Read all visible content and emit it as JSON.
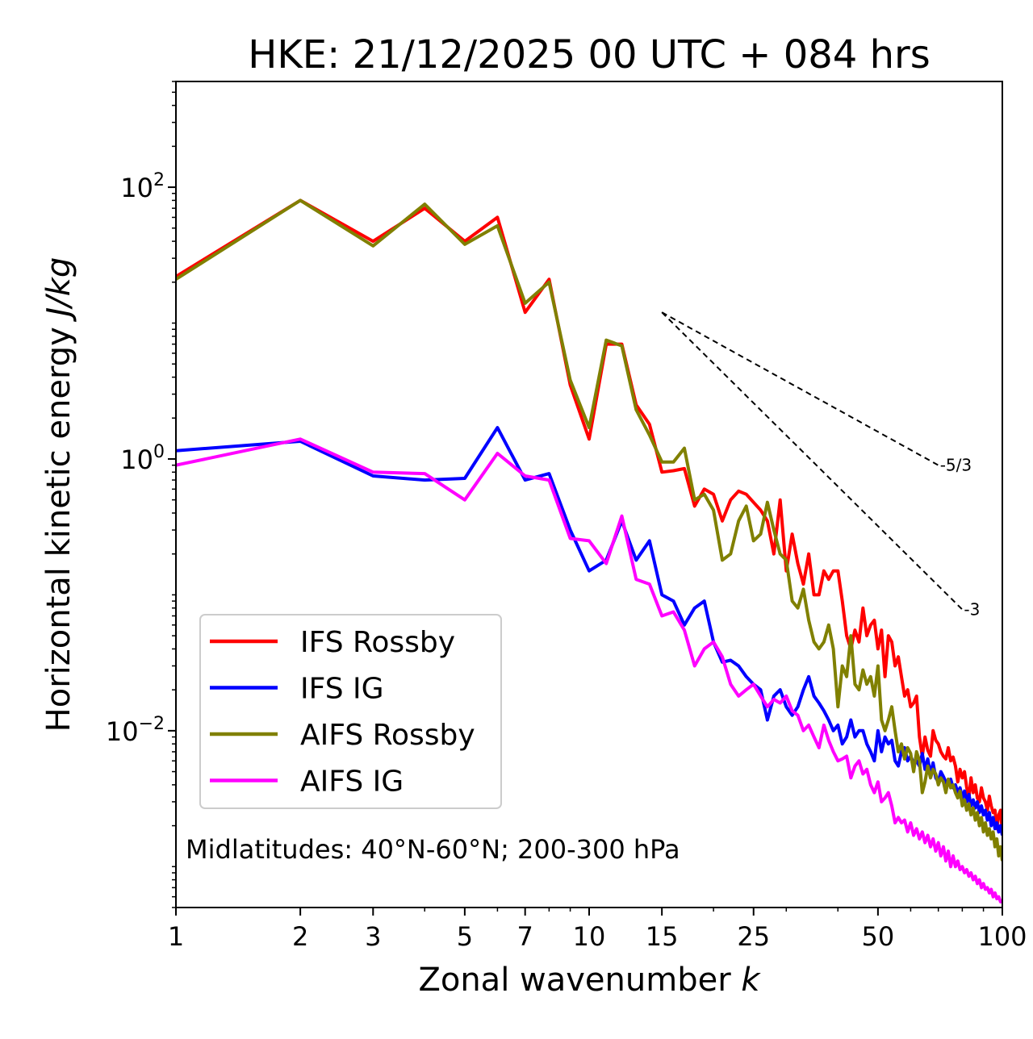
{
  "chart_data": {
    "type": "line",
    "title": "HKE: 21/12/2025 00 UTC + 084 hrs",
    "xlabel_text": "Zonal wavenumber ",
    "xlabel_var": "k",
    "ylabel_text": "Horizontal kinetic energy ",
    "ylabel_var": "J/kg",
    "xscale": "log",
    "yscale": "log",
    "xlim": [
      1,
      100
    ],
    "ylim": [
      0.0005,
      600
    ],
    "x_ticks": [
      1,
      2,
      3,
      5,
      7,
      10,
      15,
      25,
      50,
      100
    ],
    "x_tick_labels": [
      "1",
      "2",
      "3",
      "5",
      "7",
      "10",
      "15",
      "25",
      "50",
      "100"
    ],
    "y_ticks": [
      0.01,
      1,
      100
    ],
    "y_tick_base": "10",
    "y_tick_exponents": [
      "−2",
      "0",
      "2"
    ],
    "annotation": "Midlatitudes: 40°N-60°N; 200-300 hPa",
    "legend_position": "lower-left",
    "reference_lines": [
      {
        "label": "-5/3",
        "slope": -1.6667,
        "x": [
          15,
          70
        ],
        "y": [
          12.0,
          0.9
        ]
      },
      {
        "label": "-3",
        "slope": -3,
        "x": [
          15,
          80
        ],
        "y": [
          12.0,
          0.078
        ]
      }
    ],
    "series": [
      {
        "name": "IFS Rossby",
        "color": "#ff0000",
        "x": [
          1,
          2,
          3,
          4,
          5,
          6,
          7,
          8,
          9,
          10,
          11,
          12,
          13,
          14,
          15,
          16,
          17,
          18,
          19,
          20,
          21,
          22,
          23,
          24,
          25,
          26,
          27,
          28,
          29,
          30,
          31,
          32,
          33,
          34,
          35,
          36,
          37,
          38,
          39,
          40,
          41,
          42,
          43,
          44,
          45,
          46,
          47,
          48,
          49,
          50,
          51,
          52,
          53,
          54,
          55,
          56,
          57,
          58,
          59,
          60,
          61,
          62,
          63,
          64,
          65,
          66,
          67,
          68,
          69,
          70,
          71,
          72,
          73,
          74,
          75,
          76,
          77,
          78,
          79,
          80,
          81,
          82,
          83,
          84,
          85,
          86,
          87,
          88,
          89,
          90,
          91,
          92,
          93,
          94,
          95,
          96,
          97,
          98,
          99,
          100
        ],
        "y": [
          22,
          80,
          40,
          70,
          40,
          60,
          12,
          21,
          3.5,
          1.4,
          7,
          7,
          2.5,
          1.8,
          0.8,
          0.82,
          0.85,
          0.45,
          0.6,
          0.55,
          0.35,
          0.5,
          0.58,
          0.55,
          0.48,
          0.42,
          0.35,
          0.2,
          0.5,
          0.15,
          0.28,
          0.17,
          0.12,
          0.2,
          0.1,
          0.1,
          0.15,
          0.13,
          0.15,
          0.15,
          0.09,
          0.05,
          0.04,
          0.055,
          0.045,
          0.08,
          0.05,
          0.06,
          0.065,
          0.04,
          0.055,
          0.025,
          0.05,
          0.045,
          0.03,
          0.035,
          0.025,
          0.018,
          0.02,
          0.015,
          0.016,
          0.018,
          0.009,
          0.0065,
          0.009,
          0.0072,
          0.0065,
          0.01,
          0.0085,
          0.008,
          0.007,
          0.0065,
          0.0062,
          0.0075,
          0.006,
          0.0064,
          0.0055,
          0.0042,
          0.0052,
          0.0045,
          0.005,
          0.0038,
          0.0032,
          0.0045,
          0.0035,
          0.004,
          0.0032,
          0.003,
          0.0038,
          0.0032,
          0.003,
          0.0026,
          0.0033,
          0.0028,
          0.0025,
          0.0026,
          0.0019,
          0.0024,
          0.0026,
          0.0018
        ]
      },
      {
        "name": "IFS IG",
        "color": "#0000ff",
        "x": [
          1,
          2,
          3,
          4,
          5,
          6,
          7,
          8,
          9,
          10,
          11,
          12,
          13,
          14,
          15,
          16,
          17,
          18,
          19,
          20,
          21,
          22,
          23,
          24,
          25,
          26,
          27,
          28,
          29,
          30,
          31,
          32,
          33,
          34,
          35,
          36,
          37,
          38,
          39,
          40,
          41,
          42,
          43,
          44,
          45,
          46,
          47,
          48,
          49,
          50,
          51,
          52,
          53,
          54,
          55,
          56,
          57,
          58,
          59,
          60,
          61,
          62,
          63,
          64,
          65,
          66,
          67,
          68,
          69,
          70,
          71,
          72,
          73,
          74,
          75,
          76,
          77,
          78,
          79,
          80,
          81,
          82,
          83,
          84,
          85,
          86,
          87,
          88,
          89,
          90,
          91,
          92,
          93,
          94,
          95,
          96,
          97,
          98,
          99,
          100
        ],
        "y": [
          1.15,
          1.35,
          0.75,
          0.7,
          0.72,
          1.7,
          0.7,
          0.78,
          0.3,
          0.15,
          0.18,
          0.35,
          0.18,
          0.25,
          0.1,
          0.09,
          0.06,
          0.08,
          0.09,
          0.045,
          0.032,
          0.033,
          0.03,
          0.025,
          0.022,
          0.02,
          0.012,
          0.018,
          0.02,
          0.015,
          0.013,
          0.015,
          0.02,
          0.025,
          0.018,
          0.016,
          0.014,
          0.012,
          0.01,
          0.011,
          0.008,
          0.009,
          0.012,
          0.009,
          0.01,
          0.01,
          0.008,
          0.007,
          0.006,
          0.01,
          0.007,
          0.009,
          0.008,
          0.0085,
          0.006,
          0.0055,
          0.007,
          0.0075,
          0.006,
          0.0065,
          0.0058,
          0.006,
          0.0055,
          0.0068,
          0.0052,
          0.0062,
          0.0048,
          0.0058,
          0.0045,
          0.0042,
          0.005,
          0.0046,
          0.0042,
          0.004,
          0.0044,
          0.0038,
          0.004,
          0.0035,
          0.0038,
          0.0032,
          0.0036,
          0.003,
          0.0034,
          0.0028,
          0.0031,
          0.0027,
          0.003,
          0.0025,
          0.0028,
          0.0024,
          0.0026,
          0.0022,
          0.0025,
          0.002,
          0.0023,
          0.0019,
          0.0021,
          0.0018,
          0.002,
          0.0017
        ]
      },
      {
        "name": "AIFS Rossby",
        "color": "#808000",
        "x": [
          1,
          2,
          3,
          4,
          5,
          6,
          7,
          8,
          9,
          10,
          11,
          12,
          13,
          14,
          15,
          16,
          17,
          18,
          19,
          20,
          21,
          22,
          23,
          24,
          25,
          26,
          27,
          28,
          29,
          30,
          31,
          32,
          33,
          34,
          35,
          36,
          37,
          38,
          39,
          40,
          41,
          42,
          43,
          44,
          45,
          46,
          47,
          48,
          49,
          50,
          51,
          52,
          53,
          54,
          55,
          56,
          57,
          58,
          59,
          60,
          61,
          62,
          63,
          64,
          65,
          66,
          67,
          68,
          69,
          70,
          71,
          72,
          73,
          74,
          75,
          76,
          77,
          78,
          79,
          80,
          81,
          82,
          83,
          84,
          85,
          86,
          87,
          88,
          89,
          90,
          91,
          92,
          93,
          94,
          95,
          96,
          97,
          98,
          99,
          100
        ],
        "y": [
          21,
          80,
          37,
          75,
          38,
          52,
          14,
          20,
          3.8,
          1.7,
          7.5,
          6.8,
          2.3,
          1.5,
          0.95,
          0.95,
          1.2,
          0.5,
          0.55,
          0.42,
          0.18,
          0.2,
          0.35,
          0.45,
          0.25,
          0.28,
          0.48,
          0.3,
          0.2,
          0.18,
          0.09,
          0.08,
          0.11,
          0.065,
          0.045,
          0.04,
          0.045,
          0.06,
          0.04,
          0.015,
          0.03,
          0.025,
          0.05,
          0.022,
          0.02,
          0.028,
          0.022,
          0.025,
          0.018,
          0.03,
          0.012,
          0.01,
          0.012,
          0.015,
          0.01,
          0.007,
          0.008,
          0.0062,
          0.0075,
          0.0068,
          0.005,
          0.007,
          0.006,
          0.0035,
          0.0042,
          0.0055,
          0.0045,
          0.0052,
          0.0048,
          0.004,
          0.0045,
          0.0042,
          0.0035,
          0.0044,
          0.0038,
          0.004,
          0.0035,
          0.0032,
          0.0036,
          0.0028,
          0.0031,
          0.0026,
          0.0029,
          0.0024,
          0.0027,
          0.0022,
          0.0025,
          0.002,
          0.0023,
          0.0018,
          0.0021,
          0.0017,
          0.0019,
          0.0016,
          0.0018,
          0.0014,
          0.0016,
          0.0012,
          0.0014,
          0.0011
        ]
      },
      {
        "name": "AIFS IG",
        "color": "#ff00ff",
        "x": [
          1,
          2,
          3,
          4,
          5,
          6,
          7,
          8,
          9,
          10,
          11,
          12,
          13,
          14,
          15,
          16,
          17,
          18,
          19,
          20,
          21,
          22,
          23,
          24,
          25,
          26,
          27,
          28,
          29,
          30,
          31,
          32,
          33,
          34,
          35,
          36,
          37,
          38,
          39,
          40,
          41,
          42,
          43,
          44,
          45,
          46,
          47,
          48,
          49,
          50,
          51,
          52,
          53,
          54,
          55,
          56,
          57,
          58,
          59,
          60,
          61,
          62,
          63,
          64,
          65,
          66,
          67,
          68,
          69,
          70,
          71,
          72,
          73,
          74,
          75,
          76,
          77,
          78,
          79,
          80,
          81,
          82,
          83,
          84,
          85,
          86,
          87,
          88,
          89,
          90,
          91,
          92,
          93,
          94,
          95,
          96,
          97,
          98,
          99,
          100
        ],
        "y": [
          0.9,
          1.4,
          0.8,
          0.78,
          0.5,
          1.1,
          0.75,
          0.7,
          0.26,
          0.25,
          0.17,
          0.38,
          0.13,
          0.12,
          0.07,
          0.075,
          0.055,
          0.03,
          0.04,
          0.045,
          0.035,
          0.022,
          0.018,
          0.02,
          0.022,
          0.018,
          0.015,
          0.017,
          0.016,
          0.018,
          0.014,
          0.013,
          0.01,
          0.011,
          0.009,
          0.0075,
          0.011,
          0.0085,
          0.007,
          0.006,
          0.0062,
          0.0065,
          0.0045,
          0.0055,
          0.006,
          0.0048,
          0.0052,
          0.004,
          0.0035,
          0.0042,
          0.003,
          0.0032,
          0.0035,
          0.0028,
          0.0021,
          0.0023,
          0.0021,
          0.0022,
          0.0018,
          0.0021,
          0.0017,
          0.0019,
          0.0016,
          0.0018,
          0.0015,
          0.0017,
          0.0014,
          0.0016,
          0.0013,
          0.0015,
          0.0012,
          0.0014,
          0.0011,
          0.0013,
          0.001,
          0.0012,
          0.001,
          0.0011,
          0.00095,
          0.001,
          0.0009,
          0.00095,
          0.00085,
          0.0009,
          0.0008,
          0.00085,
          0.00075,
          0.0008,
          0.0007,
          0.00075,
          0.00068,
          0.0007,
          0.00064,
          0.00068,
          0.0006,
          0.00064,
          0.00058,
          0.0006,
          0.00055,
          0.00056
        ]
      }
    ]
  }
}
